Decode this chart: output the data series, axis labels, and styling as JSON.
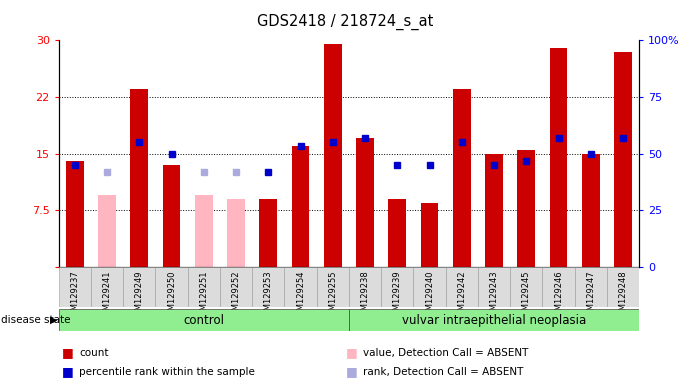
{
  "title": "GDS2418 / 218724_s_at",
  "samples": [
    "GSM129237",
    "GSM129241",
    "GSM129249",
    "GSM129250",
    "GSM129251",
    "GSM129252",
    "GSM129253",
    "GSM129254",
    "GSM129255",
    "GSM129238",
    "GSM129239",
    "GSM129240",
    "GSM129242",
    "GSM129243",
    "GSM129245",
    "GSM129246",
    "GSM129247",
    "GSM129248"
  ],
  "count_values": [
    14.0,
    9.5,
    23.5,
    13.5,
    9.5,
    9.0,
    9.0,
    16.0,
    29.5,
    17.0,
    9.0,
    8.5,
    23.5,
    15.0,
    15.5,
    29.0,
    15.0,
    28.5
  ],
  "rank_values_left": [
    13.5,
    12.5,
    16.5,
    15.0,
    15.5,
    12.5,
    12.5,
    16.0,
    16.5,
    17.0,
    13.5,
    13.5,
    16.5,
    13.5,
    14.0,
    17.0,
    15.0,
    17.0
  ],
  "absent_value_flag": [
    false,
    true,
    false,
    false,
    true,
    true,
    false,
    false,
    false,
    false,
    false,
    false,
    false,
    false,
    false,
    false,
    false,
    false
  ],
  "absent_rank_flag": [
    false,
    true,
    false,
    false,
    true,
    true,
    false,
    false,
    false,
    false,
    false,
    false,
    false,
    false,
    false,
    false,
    false,
    false
  ],
  "absent_count_vals": [
    0,
    9.5,
    0,
    0,
    9.5,
    9.0,
    0,
    0,
    0,
    0,
    0,
    0,
    0,
    0,
    0,
    0,
    0,
    0
  ],
  "absent_rank_left": [
    0,
    12.5,
    0,
    0,
    12.5,
    12.5,
    0,
    0,
    0,
    0,
    0,
    0,
    0,
    0,
    0,
    0,
    0,
    0
  ],
  "n_control": 9,
  "n_disease": 9,
  "ylim_left": [
    0,
    30
  ],
  "yticks_left": [
    0,
    7.5,
    15,
    22.5,
    30
  ],
  "ytick_right_labels": [
    "0",
    "25",
    "50",
    "75",
    "100%"
  ],
  "yticks_right_pos": [
    0,
    7.5,
    15,
    22.5,
    30
  ],
  "bar_color": "#CC0000",
  "rank_color": "#0000CC",
  "absent_bar_color": "#FFB6C1",
  "absent_rank_color": "#AAAADD",
  "green_bg": "#90EE90",
  "gray_bg": "#DCDCDC",
  "legend_labels": [
    "count",
    "percentile rank within the sample",
    "value, Detection Call = ABSENT",
    "rank, Detection Call = ABSENT"
  ],
  "legend_colors": [
    "#CC0000",
    "#0000CC",
    "#FFB6C1",
    "#AAAADD"
  ]
}
